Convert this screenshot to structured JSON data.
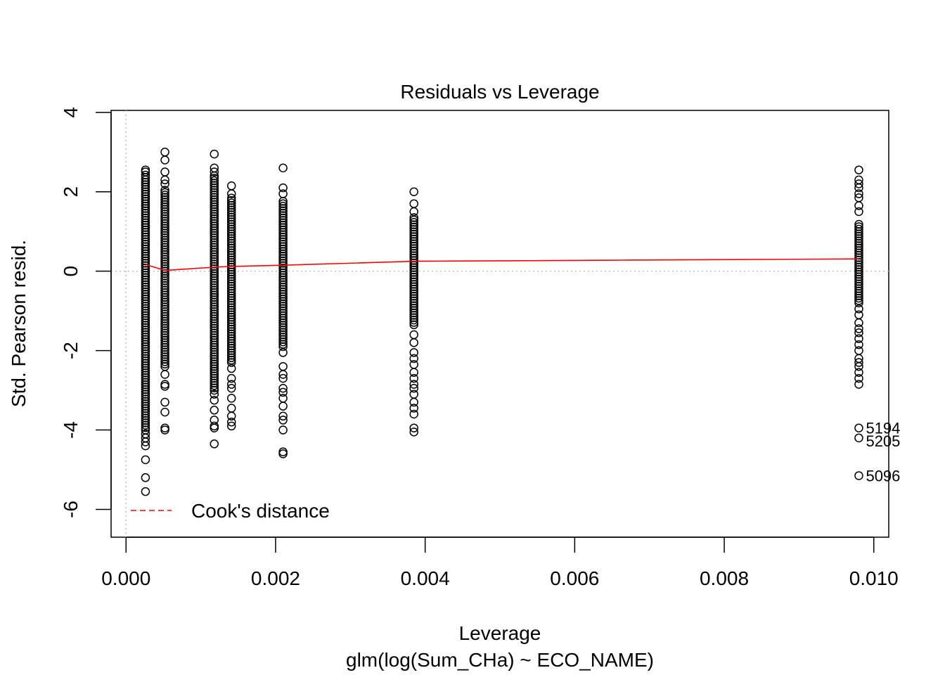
{
  "chart_data": {
    "type": "scatter",
    "title": "Residuals vs Leverage",
    "xlabel": "Leverage",
    "subtitle": "glm(log(Sum_CHa) ~ ECO_NAME)",
    "ylabel": "Std. Pearson resid.",
    "xlim": [
      -0.0002,
      0.0102
    ],
    "ylim": [
      -6.7,
      4.05
    ],
    "x_ticks": [
      0.0,
      0.002,
      0.004,
      0.006,
      0.008,
      0.01
    ],
    "x_tick_labels": [
      "0.000",
      "0.002",
      "0.004",
      "0.006",
      "0.008",
      "0.010"
    ],
    "y_ticks": [
      -6,
      -4,
      -2,
      0,
      2,
      4
    ],
    "y_tick_labels": [
      "-6",
      "-4",
      "-2",
      "0",
      "2",
      "4"
    ],
    "reference_lines": {
      "x": 0,
      "y": 0
    },
    "legend": {
      "label": "Cook's distance",
      "position": "bottom-left",
      "color": "#ff0000"
    },
    "colors": {
      "points": "#000000",
      "smooth": "#ff0000",
      "reference": "#bebebe"
    },
    "groups": [
      {
        "leverage": 0.00026,
        "dense_range": [
          -4.0,
          2.45
        ],
        "outliers": [
          2.55,
          2.5,
          -4.1,
          -4.2,
          -4.3,
          -4.4,
          -4.75,
          -5.2,
          -5.55
        ]
      },
      {
        "leverage": 0.00052,
        "dense_range": [
          -2.4,
          2.05
        ],
        "outliers": [
          3.0,
          2.8,
          2.5,
          2.3,
          2.2,
          -2.6,
          -2.85,
          -2.9,
          -3.3,
          -3.55,
          -3.95,
          -4.0
        ]
      },
      {
        "leverage": 0.00118,
        "dense_range": [
          -3.0,
          2.4
        ],
        "outliers": [
          2.95,
          2.6,
          2.5,
          -3.1,
          -3.25,
          -3.5,
          -3.75,
          -3.9,
          -3.95,
          -4.35
        ]
      },
      {
        "leverage": 0.00141,
        "dense_range": [
          -2.3,
          1.85
        ],
        "outliers": [
          2.15,
          1.95,
          -2.45,
          -2.7,
          -2.85,
          -2.95,
          -3.2,
          -3.45,
          -3.65,
          -3.8,
          -3.9
        ]
      },
      {
        "leverage": 0.0021,
        "dense_range": [
          -1.9,
          1.8
        ],
        "outliers": [
          2.6,
          2.1,
          1.95,
          -2.05,
          -2.4,
          -2.6,
          -2.7,
          -2.95,
          -3.05,
          -3.2,
          -3.4,
          -3.65,
          -3.75,
          -4.0,
          -4.55,
          -4.6
        ]
      },
      {
        "leverage": 0.00385,
        "dense_range": [
          -1.35,
          1.4
        ],
        "outliers": [
          2.0,
          1.7,
          1.5,
          -1.6,
          -1.8,
          -2.05,
          -2.2,
          -2.35,
          -2.55,
          -2.7,
          -2.85,
          -2.95,
          -3.1,
          -3.3,
          -3.45,
          -3.6,
          -3.95,
          -4.05
        ]
      },
      {
        "leverage": 0.0098,
        "dense_range": [
          -0.8,
          1.2
        ],
        "outliers": [
          2.55,
          2.3,
          2.2,
          2.1,
          1.95,
          1.85,
          1.65,
          1.5,
          -0.95,
          -1.1,
          -1.3,
          -1.45,
          -1.55,
          -1.7,
          -1.85,
          -2.0,
          -2.2,
          -2.3,
          -2.4,
          -2.55,
          -2.7,
          -2.85,
          -3.95,
          -4.2,
          -5.15
        ]
      }
    ],
    "smooth_line": {
      "x": [
        0.00026,
        0.00052,
        0.00118,
        0.00141,
        0.0021,
        0.00385,
        0.0098
      ],
      "y": [
        0.17,
        0.02,
        0.1,
        0.12,
        0.15,
        0.25,
        0.31
      ]
    },
    "labeled_points": [
      {
        "label": "5194",
        "x": 0.0098,
        "y": -3.95
      },
      {
        "label": "5205",
        "x": 0.0098,
        "y": -4.2
      },
      {
        "label": "5096",
        "x": 0.0098,
        "y": -5.15
      }
    ]
  }
}
